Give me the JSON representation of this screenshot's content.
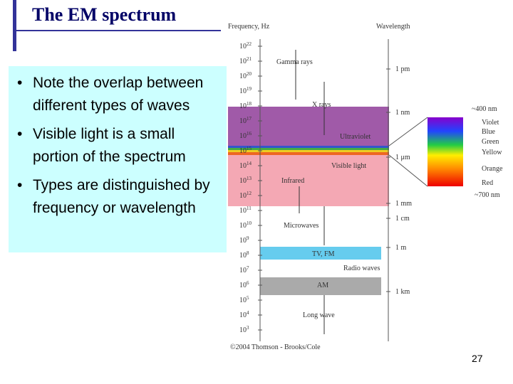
{
  "title": "The EM spectrum",
  "bullets": [
    "Note the overlap between different types of waves",
    "Visible light is a small portion of the spectrum",
    "Types are distinguished by frequency or wavelength"
  ],
  "figure": {
    "frequency_header": "Frequency, Hz",
    "wavelength_header": "Wavelength",
    "frequency_labels": [
      {
        "base": "10",
        "exponent": "22"
      },
      {
        "base": "10",
        "exponent": "21"
      },
      {
        "base": "10",
        "exponent": "20"
      },
      {
        "base": "10",
        "exponent": "19"
      },
      {
        "base": "10",
        "exponent": "18"
      },
      {
        "base": "10",
        "exponent": "17"
      },
      {
        "base": "10",
        "exponent": "16"
      },
      {
        "base": "10",
        "exponent": "15"
      },
      {
        "base": "10",
        "exponent": "14"
      },
      {
        "base": "10",
        "exponent": "13"
      },
      {
        "base": "10",
        "exponent": "12"
      },
      {
        "base": "10",
        "exponent": "11"
      },
      {
        "base": "10",
        "exponent": "10"
      },
      {
        "base": "10",
        "exponent": "9"
      },
      {
        "base": "10",
        "exponent": "8"
      },
      {
        "base": "10",
        "exponent": "7"
      },
      {
        "base": "10",
        "exponent": "6"
      },
      {
        "base": "10",
        "exponent": "5"
      },
      {
        "base": "10",
        "exponent": "4"
      },
      {
        "base": "10",
        "exponent": "3"
      }
    ],
    "wavelength_labels": [
      "1 pm",
      "1 nm",
      "1 μm",
      "1 mm",
      "1 cm",
      "1 m",
      "1 km"
    ],
    "bands": [
      "Gamma rays",
      "X rays",
      "Ultraviolet",
      "Visible light",
      "Infrared",
      "Microwaves",
      "TV, FM",
      "Radio waves",
      "AM",
      "Long wave"
    ],
    "visible_limits": [
      "~400 nm",
      "~700 nm"
    ],
    "colors": [
      "Violet",
      "Blue",
      "Green",
      "Yellow",
      "Orange",
      "Red"
    ],
    "credit": "©2004 Thomson - Brooks/Cole"
  },
  "page_number": "27"
}
